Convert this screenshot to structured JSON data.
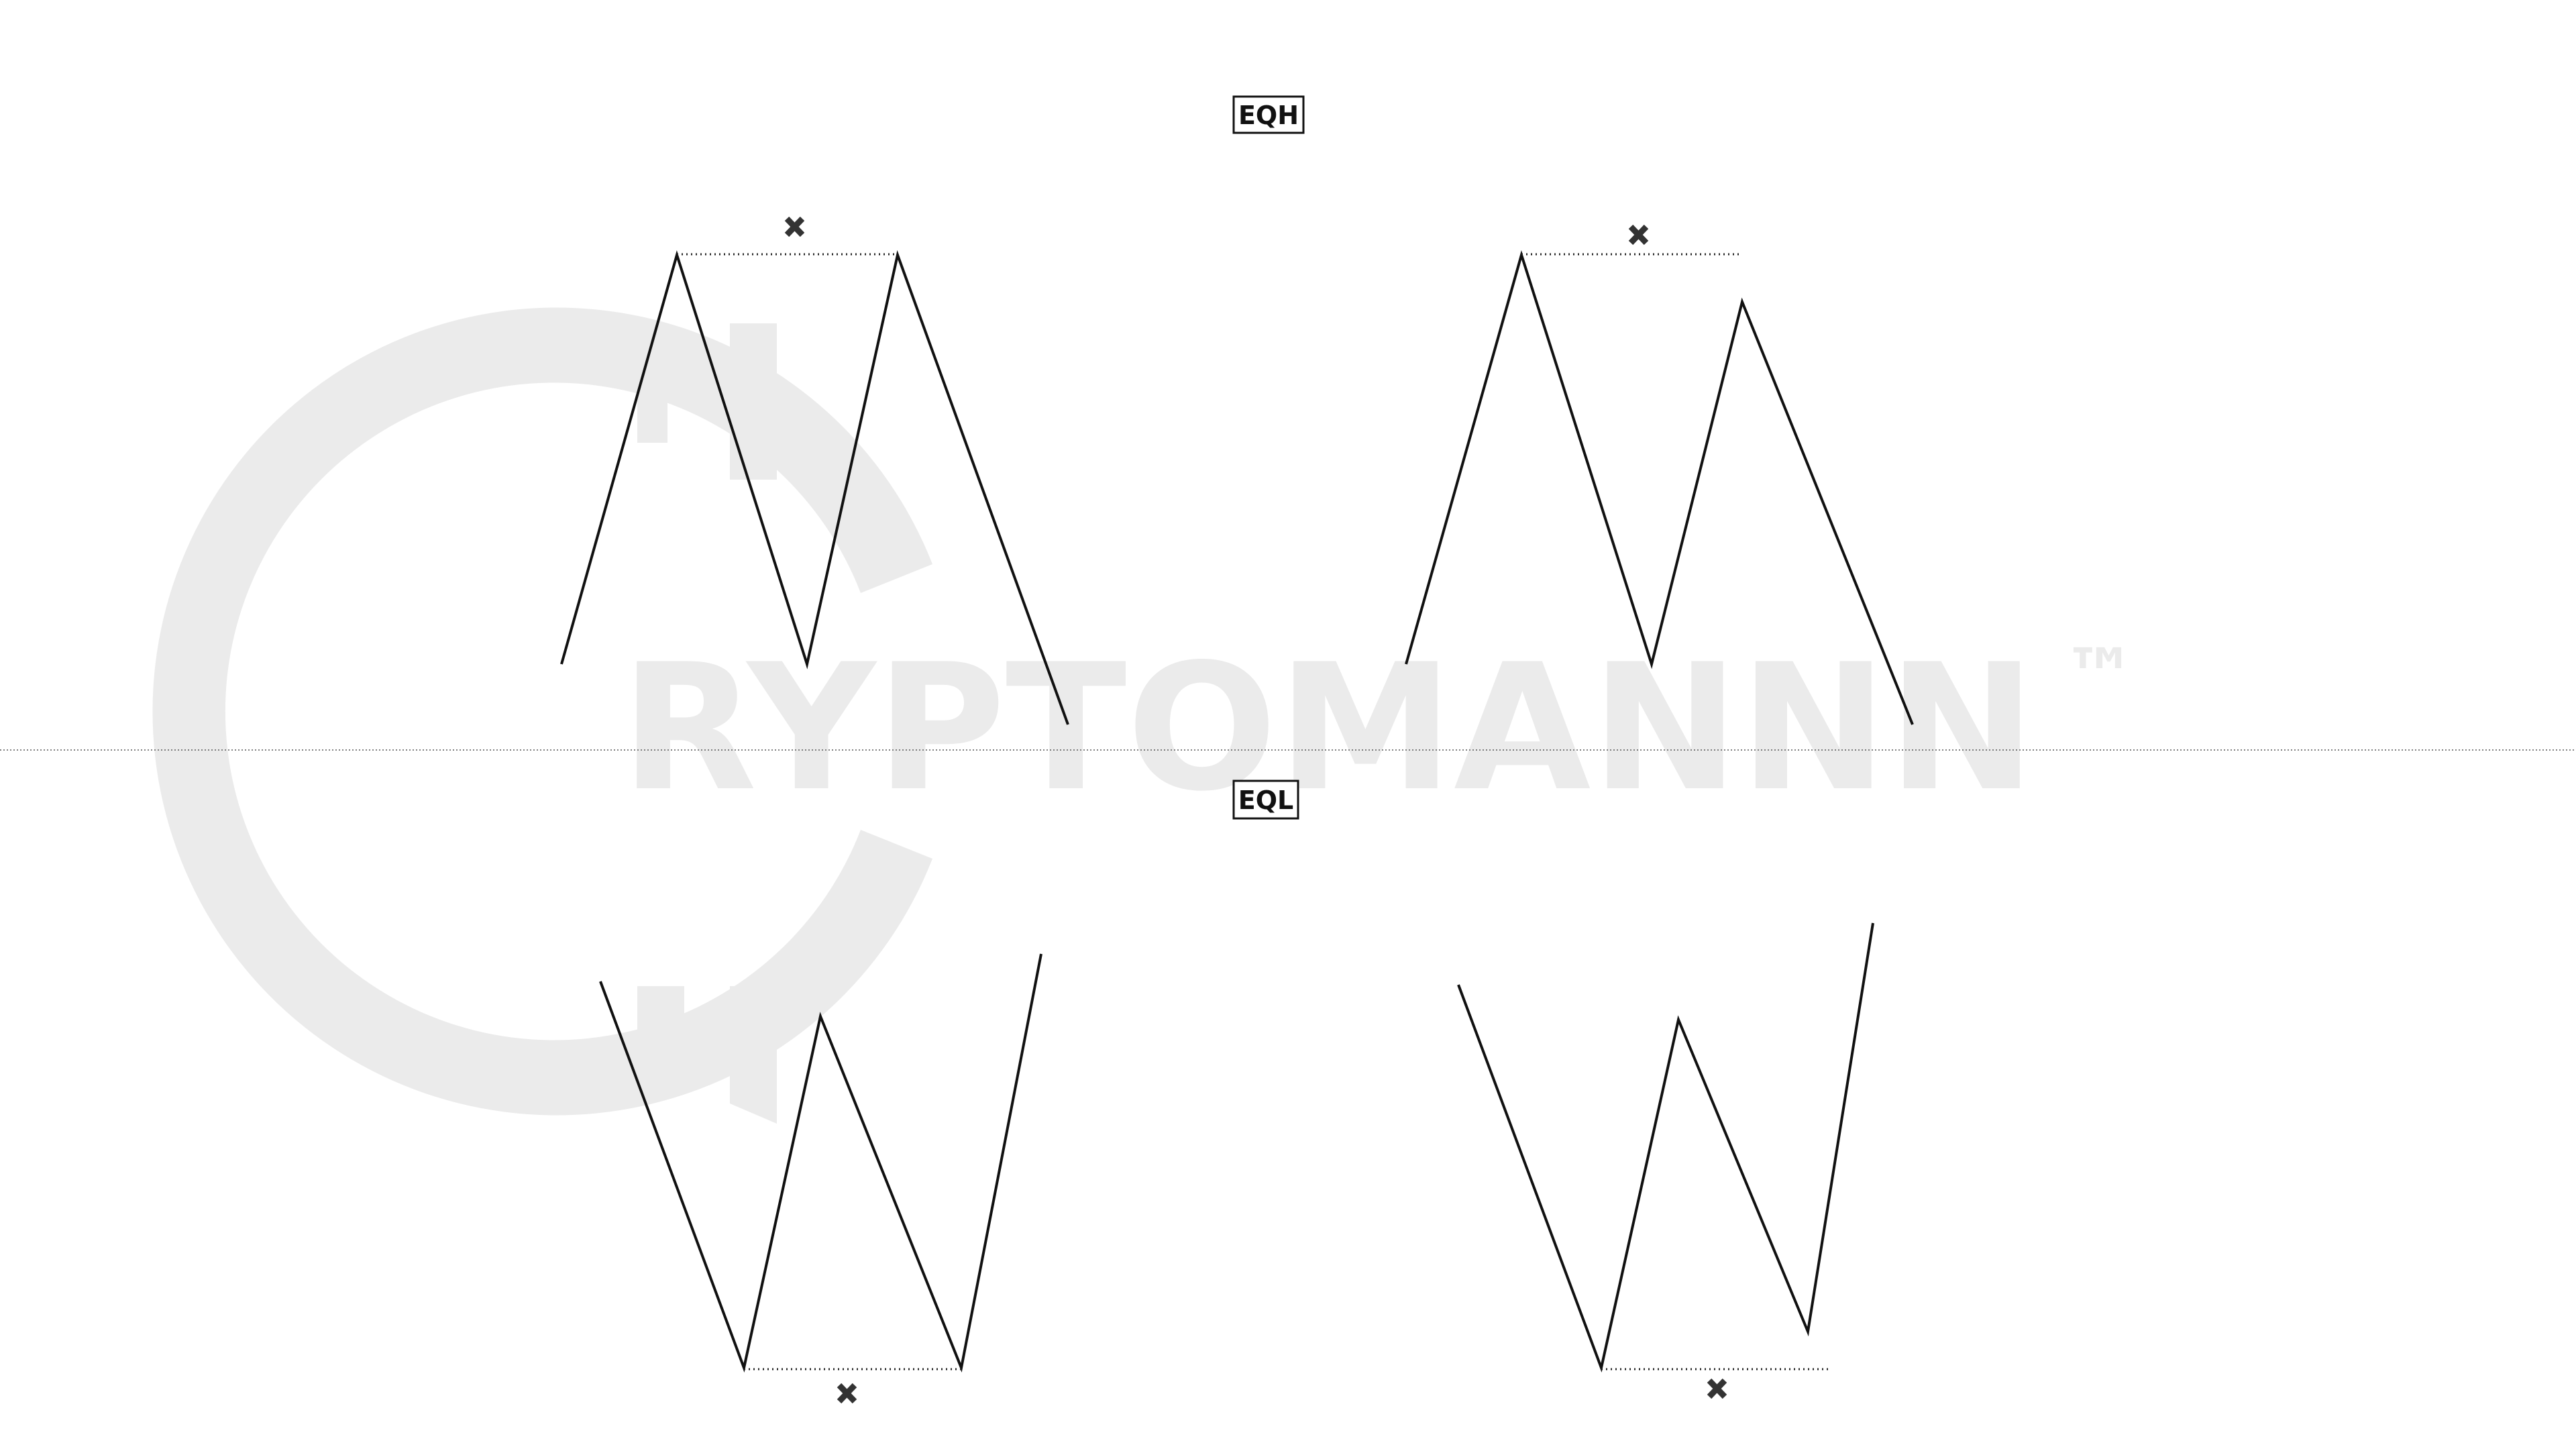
{
  "watermark": {
    "text": "RYPTOMANNN",
    "trademark": "™"
  },
  "labels": {
    "top": "EQH",
    "bottom": "EQL"
  },
  "colors": {
    "background": "#ffffff",
    "line": "#111111",
    "watermark": "#ebebeb",
    "marker": "#333333"
  },
  "icons": {
    "marker": "x-mark-icon"
  }
}
